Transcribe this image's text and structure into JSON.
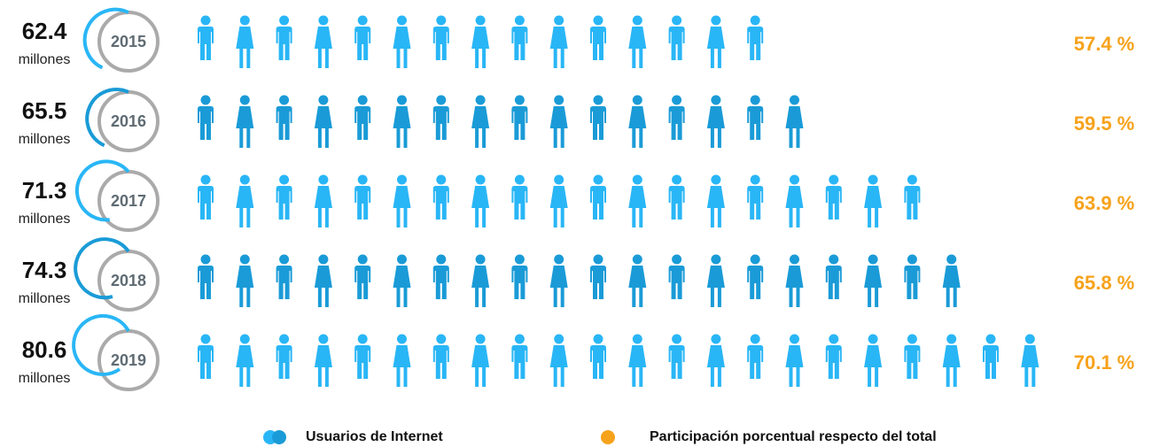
{
  "chart_data": {
    "type": "pictogram",
    "categories": [
      "2015",
      "2016",
      "2017",
      "2018",
      "2019"
    ],
    "users": [
      62.4,
      65.5,
      71.3,
      74.3,
      80.6
    ],
    "unit": "millones",
    "icons": [
      15,
      16,
      19,
      20,
      22
    ],
    "share": [
      57.4,
      59.5,
      63.9,
      65.8,
      70.1
    ],
    "share_labels": [
      "57.4 %",
      "59.5 %",
      "63.9 %",
      "65.8 %",
      "70.1 %"
    ],
    "colors": [
      "#29b6f6",
      "#1a9bd7"
    ],
    "share_color": "#f7a21b",
    "legend": [
      "Usuarios de Internet",
      "Participación porcentual respecto del total"
    ]
  }
}
